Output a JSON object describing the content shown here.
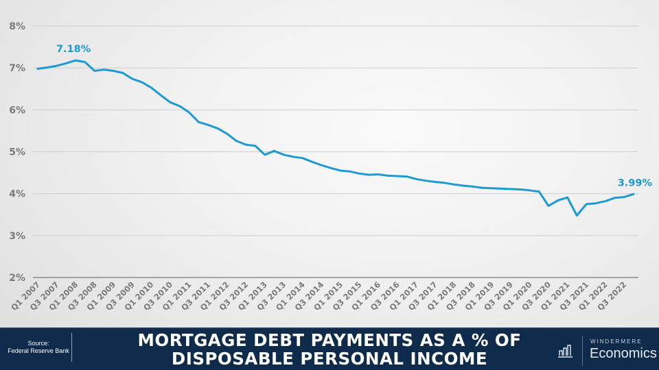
{
  "chart_data": {
    "type": "line",
    "title": "MORTGAGE DEBT PAYMENTS AS A % OF DISPOSABLE PERSONAL INCOME",
    "xlabel": "",
    "ylabel": "",
    "ylim": [
      2,
      8
    ],
    "yticks": [
      "2%",
      "3%",
      "4%",
      "5%",
      "6%",
      "7%",
      "8%"
    ],
    "grid": true,
    "legend": "none",
    "line_color": "#1b9ad6",
    "x_tick_labels": [
      "Q1 2007",
      "Q3 2007",
      "Q1 2008",
      "Q3 2008",
      "Q1 2009",
      "Q3 2009",
      "Q1 2010",
      "Q3 2010",
      "Q1 2011",
      "Q3 2011",
      "Q1 2012",
      "Q3 2012",
      "Q1 2013",
      "Q3 2013",
      "Q1 2014",
      "Q3 2014",
      "Q1 2015",
      "Q3 2015",
      "Q1 2016",
      "Q3 2016",
      "Q1 2017",
      "Q3 2017",
      "Q1 2018",
      "Q3 2018",
      "Q1 2019",
      "Q3 2019",
      "Q1 2020",
      "Q3 2020",
      "Q1 2021",
      "Q3 2021",
      "Q1 2022",
      "Q3 2022"
    ],
    "x": [
      "Q1 2007",
      "Q2 2007",
      "Q3 2007",
      "Q4 2007",
      "Q1 2008",
      "Q2 2008",
      "Q3 2008",
      "Q4 2008",
      "Q1 2009",
      "Q2 2009",
      "Q3 2009",
      "Q4 2009",
      "Q1 2010",
      "Q2 2010",
      "Q3 2010",
      "Q4 2010",
      "Q1 2011",
      "Q2 2011",
      "Q3 2011",
      "Q4 2011",
      "Q1 2012",
      "Q2 2012",
      "Q3 2012",
      "Q4 2012",
      "Q1 2013",
      "Q2 2013",
      "Q3 2013",
      "Q4 2013",
      "Q1 2014",
      "Q2 2014",
      "Q3 2014",
      "Q4 2014",
      "Q1 2015",
      "Q2 2015",
      "Q3 2015",
      "Q4 2015",
      "Q1 2016",
      "Q2 2016",
      "Q3 2016",
      "Q4 2016",
      "Q1 2017",
      "Q2 2017",
      "Q3 2017",
      "Q4 2017",
      "Q1 2018",
      "Q2 2018",
      "Q3 2018",
      "Q4 2018",
      "Q1 2019",
      "Q2 2019",
      "Q3 2019",
      "Q4 2019",
      "Q1 2020",
      "Q2 2020",
      "Q3 2020",
      "Q4 2020",
      "Q1 2021",
      "Q2 2021",
      "Q3 2021",
      "Q4 2021",
      "Q1 2022",
      "Q2 2022",
      "Q3 2022",
      "Q4 2022"
    ],
    "series": [
      {
        "name": "Mortgage debt payments % of DPI",
        "values": [
          6.98,
          7.01,
          7.05,
          7.11,
          7.18,
          7.14,
          6.93,
          6.96,
          6.93,
          6.88,
          6.74,
          6.66,
          6.53,
          6.35,
          6.18,
          6.09,
          5.94,
          5.71,
          5.64,
          5.56,
          5.43,
          5.26,
          5.17,
          5.14,
          4.93,
          5.02,
          4.93,
          4.88,
          4.85,
          4.76,
          4.68,
          4.61,
          4.55,
          4.53,
          4.48,
          4.45,
          4.46,
          4.43,
          4.42,
          4.41,
          4.35,
          4.31,
          4.28,
          4.26,
          4.22,
          4.19,
          4.17,
          4.14,
          4.13,
          4.12,
          4.11,
          4.1,
          4.08,
          4.05,
          3.71,
          3.84,
          3.91,
          3.48,
          3.75,
          3.77,
          3.82,
          3.9,
          3.92,
          3.99
        ]
      }
    ],
    "annotations": [
      {
        "text": "7.18%",
        "x": "Q1 2008",
        "value": 7.18
      },
      {
        "text": "3.99%",
        "x": "Q4 2022",
        "value": 3.99
      }
    ]
  },
  "footer": {
    "source_label": "Source:",
    "source_name": "Federal Reserve Bank",
    "title_line1": "MORTGAGE DEBT PAYMENTS AS A % OF",
    "title_line2": "DISPOSABLE PERSONAL INCOME",
    "logo_brand": "WINDERMERE",
    "logo_name": "Economics",
    "logo_icon": "bar-chart-icon"
  },
  "colors": {
    "line": "#1b9ad6",
    "footer_bg": "#0f2b4c",
    "tick_text": "#7a7a7a"
  }
}
